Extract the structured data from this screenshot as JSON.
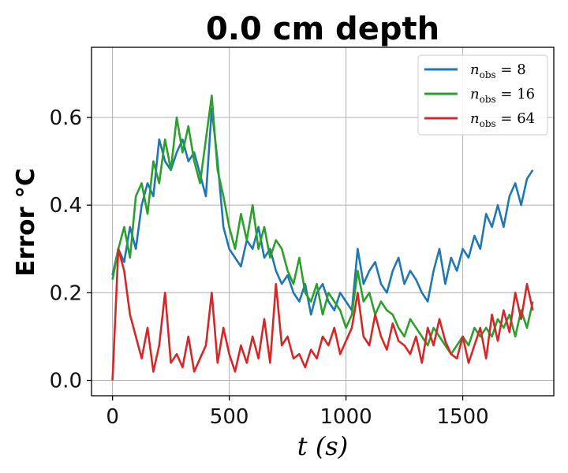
{
  "chart_data": {
    "type": "line",
    "title": "0.0 cm depth",
    "xlabel": "t (s)",
    "ylabel": "Error °C",
    "xlim": [
      -90,
      1890
    ],
    "ylim": [
      -0.035,
      0.76
    ],
    "xticks": [
      0,
      500,
      1000,
      1500
    ],
    "xtick_labels": [
      "0",
      "500",
      "1000",
      "1500"
    ],
    "yticks": [
      0.0,
      0.2,
      0.4,
      0.6
    ],
    "ytick_labels": [
      "0.0",
      "0.2",
      "0.4",
      "0.6"
    ],
    "grid": true,
    "legend_position": "top-right",
    "series": [
      {
        "name": "n_obs = 8",
        "legend_html": "<tspan font-style='italic'>n</tspan><tspan font-size='12' dy='5'>obs</tspan><tspan dy='-5'> = 8</tspan>",
        "color": "#1f77b4",
        "x": [
          0,
          25,
          50,
          75,
          100,
          125,
          150,
          175,
          200,
          225,
          250,
          275,
          300,
          325,
          350,
          375,
          400,
          425,
          450,
          475,
          500,
          525,
          550,
          575,
          600,
          625,
          650,
          675,
          700,
          725,
          750,
          775,
          800,
          825,
          850,
          875,
          900,
          925,
          950,
          975,
          1000,
          1025,
          1050,
          1075,
          1100,
          1125,
          1150,
          1175,
          1200,
          1225,
          1250,
          1275,
          1300,
          1325,
          1350,
          1375,
          1400,
          1425,
          1450,
          1475,
          1500,
          1525,
          1550,
          1575,
          1600,
          1625,
          1650,
          1675,
          1700,
          1725,
          1750,
          1775,
          1800
        ],
        "values": [
          0.24,
          0.3,
          0.27,
          0.35,
          0.3,
          0.4,
          0.45,
          0.42,
          0.55,
          0.5,
          0.48,
          0.52,
          0.55,
          0.5,
          0.52,
          0.47,
          0.42,
          0.62,
          0.5,
          0.35,
          0.3,
          0.28,
          0.26,
          0.32,
          0.3,
          0.35,
          0.28,
          0.3,
          0.25,
          0.22,
          0.24,
          0.2,
          0.18,
          0.22,
          0.15,
          0.2,
          0.22,
          0.18,
          0.16,
          0.2,
          0.18,
          0.16,
          0.3,
          0.22,
          0.25,
          0.27,
          0.22,
          0.2,
          0.25,
          0.28,
          0.22,
          0.25,
          0.23,
          0.2,
          0.18,
          0.25,
          0.3,
          0.22,
          0.28,
          0.25,
          0.3,
          0.28,
          0.33,
          0.3,
          0.38,
          0.35,
          0.4,
          0.35,
          0.42,
          0.45,
          0.4,
          0.46,
          0.48
        ]
      },
      {
        "name": "n_obs = 16",
        "legend_html": "<tspan font-style='italic'>n</tspan><tspan font-size='12' dy='5'>obs</tspan><tspan dy='-5'> = 16</tspan>",
        "color": "#2ca02c",
        "x": [
          0,
          25,
          50,
          75,
          100,
          125,
          150,
          175,
          200,
          225,
          250,
          275,
          300,
          325,
          350,
          375,
          400,
          425,
          450,
          475,
          500,
          525,
          550,
          575,
          600,
          625,
          650,
          675,
          700,
          725,
          750,
          775,
          800,
          825,
          850,
          875,
          900,
          925,
          950,
          975,
          1000,
          1025,
          1050,
          1075,
          1100,
          1125,
          1150,
          1175,
          1200,
          1225,
          1250,
          1275,
          1300,
          1325,
          1350,
          1375,
          1400,
          1425,
          1450,
          1475,
          1500,
          1525,
          1550,
          1575,
          1600,
          1625,
          1650,
          1675,
          1700,
          1725,
          1750,
          1775,
          1800
        ],
        "values": [
          0.23,
          0.3,
          0.35,
          0.28,
          0.42,
          0.45,
          0.38,
          0.5,
          0.45,
          0.55,
          0.48,
          0.6,
          0.52,
          0.58,
          0.5,
          0.45,
          0.55,
          0.65,
          0.48,
          0.42,
          0.35,
          0.3,
          0.38,
          0.32,
          0.4,
          0.3,
          0.35,
          0.28,
          0.32,
          0.3,
          0.25,
          0.22,
          0.28,
          0.2,
          0.18,
          0.22,
          0.15,
          0.2,
          0.18,
          0.16,
          0.12,
          0.15,
          0.25,
          0.18,
          0.2,
          0.15,
          0.18,
          0.16,
          0.15,
          0.12,
          0.1,
          0.14,
          0.12,
          0.1,
          0.08,
          0.12,
          0.1,
          0.08,
          0.06,
          0.08,
          0.1,
          0.08,
          0.12,
          0.1,
          0.12,
          0.1,
          0.14,
          0.12,
          0.15,
          0.1,
          0.16,
          0.12,
          0.18
        ]
      },
      {
        "name": "n_obs = 64",
        "legend_html": "<tspan font-style='italic'>n</tspan><tspan font-size='12' dy='5'>obs</tspan><tspan dy='-5'> = 64</tspan>",
        "color": "#d62728",
        "x": [
          0,
          25,
          50,
          75,
          100,
          125,
          150,
          175,
          200,
          225,
          250,
          275,
          300,
          325,
          350,
          375,
          400,
          425,
          450,
          475,
          500,
          525,
          550,
          575,
          600,
          625,
          650,
          675,
          700,
          725,
          750,
          775,
          800,
          825,
          850,
          875,
          900,
          925,
          950,
          975,
          1000,
          1025,
          1050,
          1075,
          1100,
          1125,
          1150,
          1175,
          1200,
          1225,
          1250,
          1275,
          1300,
          1325,
          1350,
          1375,
          1400,
          1425,
          1450,
          1475,
          1500,
          1525,
          1550,
          1575,
          1600,
          1625,
          1650,
          1675,
          1700,
          1725,
          1750,
          1775,
          1800
        ],
        "values": [
          0.0,
          0.3,
          0.25,
          0.15,
          0.1,
          0.05,
          0.12,
          0.02,
          0.08,
          0.2,
          0.04,
          0.06,
          0.03,
          0.1,
          0.02,
          0.05,
          0.08,
          0.2,
          0.04,
          0.12,
          0.06,
          0.02,
          0.08,
          0.04,
          0.1,
          0.05,
          0.14,
          0.04,
          0.22,
          0.08,
          0.1,
          0.05,
          0.06,
          0.03,
          0.07,
          0.05,
          0.1,
          0.08,
          0.12,
          0.06,
          0.09,
          0.12,
          0.2,
          0.1,
          0.08,
          0.15,
          0.1,
          0.07,
          0.13,
          0.09,
          0.08,
          0.06,
          0.1,
          0.04,
          0.12,
          0.08,
          0.14,
          0.09,
          0.06,
          0.05,
          0.1,
          0.04,
          0.08,
          0.12,
          0.05,
          0.15,
          0.09,
          0.16,
          0.11,
          0.2,
          0.14,
          0.22,
          0.16
        ]
      }
    ]
  }
}
